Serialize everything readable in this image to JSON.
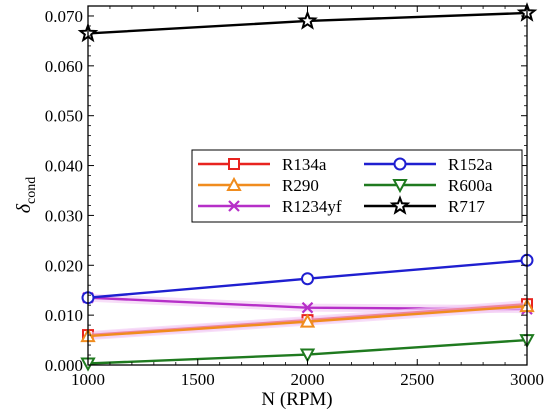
{
  "chart_data": {
    "type": "line",
    "xlabel": "N (RPM)",
    "ylabel": "δ",
    "ylabel_sub": "cond",
    "x": [
      1000,
      2000,
      3000
    ],
    "xlim": [
      1000,
      3000
    ],
    "ylim": [
      0.0,
      0.072
    ],
    "xticks": [
      1000,
      1500,
      2000,
      2500,
      3000
    ],
    "yticks": [
      0.0,
      0.01,
      0.02,
      0.03,
      0.04,
      0.05,
      0.06,
      0.07
    ],
    "xtick_labels": [
      "1000",
      "1500",
      "2000",
      "2500",
      "3000"
    ],
    "ytick_labels": [
      "0.000",
      "0.010",
      "0.020",
      "0.030",
      "0.040",
      "0.050",
      "0.060",
      "0.070"
    ],
    "grid": false,
    "legend_position": "center-right",
    "series": [
      {
        "name": "R134a",
        "values": [
          0.006,
          0.009,
          0.0122
        ],
        "color": "#e8231f",
        "marker": "square"
      },
      {
        "name": "R152a",
        "values": [
          0.0135,
          0.0173,
          0.021
        ],
        "color": "#1f1fd0",
        "marker": "circle"
      },
      {
        "name": "R290",
        "values": [
          0.0058,
          0.0087,
          0.0118
        ],
        "color": "#f08c1e",
        "marker": "triangle-up"
      },
      {
        "name": "R600a",
        "values": [
          0.0003,
          0.0021,
          0.005
        ],
        "color": "#1f7a1f",
        "marker": "triangle-down"
      },
      {
        "name": "R1234yf",
        "values": [
          0.0135,
          0.0115,
          0.0112
        ],
        "color": "#b62fc8",
        "marker": "x"
      },
      {
        "name": "R717",
        "values": [
          0.0665,
          0.069,
          0.0706
        ],
        "color": "#000000",
        "marker": "star"
      }
    ]
  }
}
